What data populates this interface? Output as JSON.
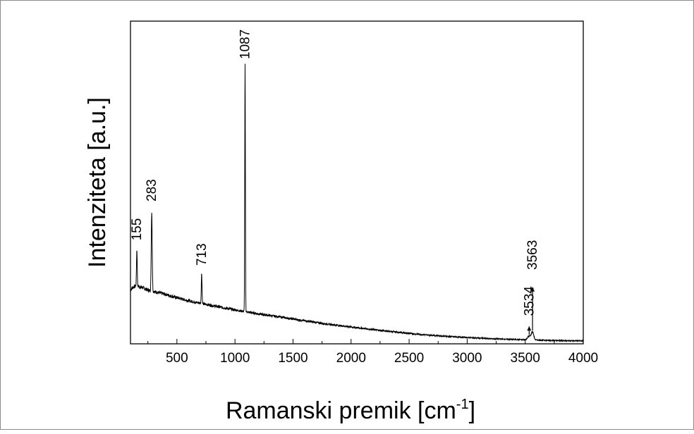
{
  "chart_data": {
    "type": "line",
    "title": "",
    "xlabel": "Ramanski premik [cm",
    "xlabel_superscript": "-1",
    "xlabel_suffix": "]",
    "ylabel": "Intenziteta [a.u.]",
    "xlim": [
      100,
      4000
    ],
    "ylim": [
      0,
      1
    ],
    "y_tick_labels_shown": false,
    "x_ticks": [
      500,
      1000,
      1500,
      2000,
      2500,
      3000,
      3500,
      4000
    ],
    "x_tick_labels": [
      "500",
      "1000",
      "1500",
      "2000",
      "2500",
      "3000",
      "3500",
      "4000"
    ],
    "grid": false,
    "legend": "none",
    "line_color": "#000000",
    "baseline": {
      "x": [
        100,
        120,
        150,
        200,
        250,
        300,
        400,
        500,
        600,
        700,
        800,
        900,
        1000,
        1100,
        1200,
        1400,
        1600,
        1800,
        2000,
        2200,
        2400,
        2600,
        2800,
        3000,
        3200,
        3400,
        3500,
        3600,
        3700,
        3800,
        4000
      ],
      "y": [
        0.19,
        0.2,
        0.205,
        0.2,
        0.19,
        0.185,
        0.175,
        0.163,
        0.152,
        0.143,
        0.135,
        0.127,
        0.119,
        0.112,
        0.105,
        0.093,
        0.08,
        0.068,
        0.058,
        0.048,
        0.039,
        0.031,
        0.025,
        0.02,
        0.016,
        0.013,
        0.012,
        0.011,
        0.01,
        0.009,
        0.008
      ]
    },
    "peaks": [
      {
        "x": 155,
        "y": 0.335,
        "width": 7
      },
      {
        "x": 283,
        "y": 0.47,
        "width": 9
      },
      {
        "x": 713,
        "y": 0.25,
        "width": 7
      },
      {
        "x": 1087,
        "y": 1.0,
        "width": 6
      },
      {
        "x": 3534,
        "y": 0.025,
        "width": 30
      },
      {
        "x": 3563,
        "y": 0.04,
        "width": 22
      }
    ],
    "annotations": [
      {
        "text": "155",
        "x": 155,
        "y": 0.36
      },
      {
        "text": "283",
        "x": 283,
        "y": 0.5
      },
      {
        "text": "713",
        "x": 713,
        "y": 0.27
      },
      {
        "text": "1087",
        "x": 1087,
        "y": 1.01
      },
      {
        "text": "3534",
        "x": 3534,
        "y": 0.09
      },
      {
        "text": "3563",
        "x": 3563,
        "y": 0.255
      }
    ]
  }
}
